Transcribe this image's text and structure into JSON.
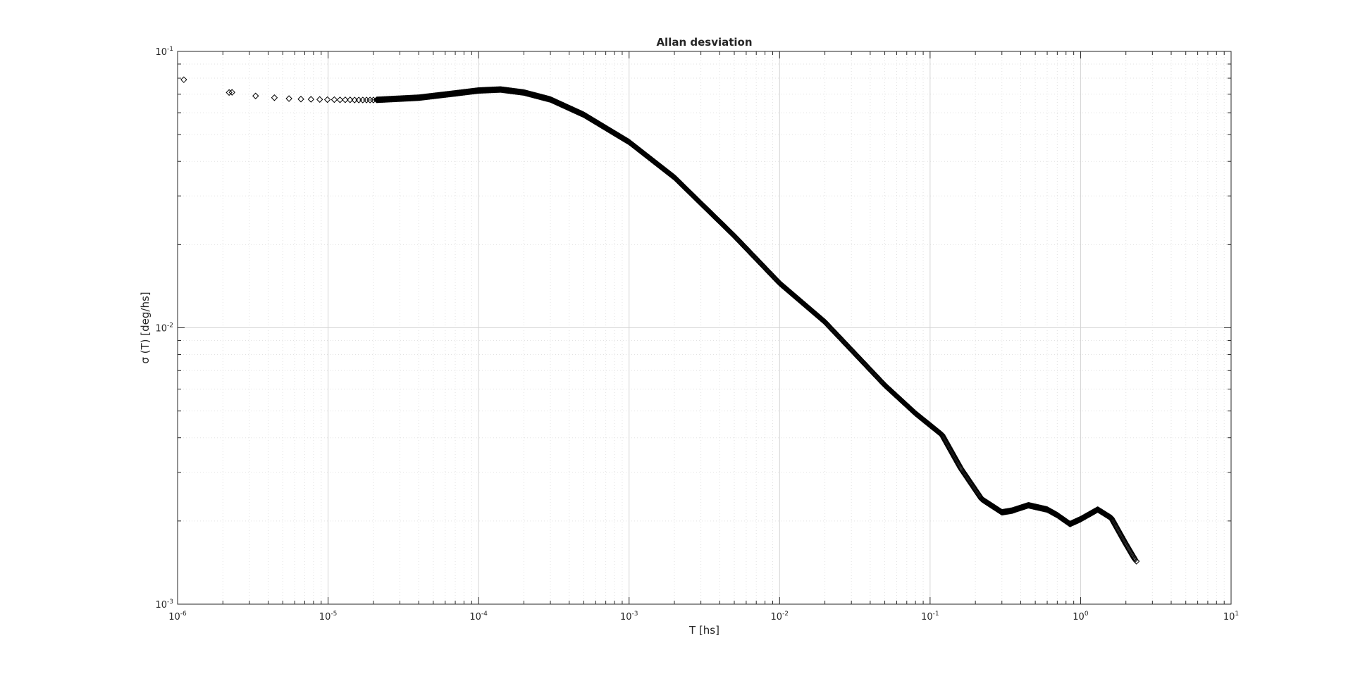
{
  "chart_data": {
    "type": "scatter",
    "title": "Allan desviation",
    "xlabel": "T [hs]",
    "ylabel": "σ (T) [deg/hs]",
    "xscale": "log",
    "yscale": "log",
    "xlim": [
      1e-06,
      10
    ],
    "ylim": [
      0.001,
      0.1
    ],
    "grid": true,
    "minor_grid": true,
    "legend": "none",
    "marker": "diamond",
    "marker_color": "#000000",
    "x_ticks": [
      {
        "base": "10",
        "exp": "-6"
      },
      {
        "base": "10",
        "exp": "-5"
      },
      {
        "base": "10",
        "exp": "-4"
      },
      {
        "base": "10",
        "exp": "-3"
      },
      {
        "base": "10",
        "exp": "-2"
      },
      {
        "base": "10",
        "exp": "-1"
      },
      {
        "base": "10",
        "exp": "0"
      },
      {
        "base": "10",
        "exp": "1"
      }
    ],
    "y_ticks": [
      {
        "base": "10",
        "exp": "-3"
      },
      {
        "base": "10",
        "exp": "-2"
      },
      {
        "base": "10",
        "exp": "-1"
      }
    ],
    "curve": {
      "x": [
        1.1e-06,
        2.2e-06,
        3.3e-06,
        4.4e-06,
        5.5e-06,
        6.6e-06,
        8e-06,
        1e-05,
        2e-05,
        4e-05,
        7e-05,
        0.0001,
        0.00014,
        0.0002,
        0.0003,
        0.0005,
        0.001,
        0.002,
        0.005,
        0.01,
        0.02,
        0.05,
        0.08,
        0.12,
        0.16,
        0.22,
        0.3,
        0.35,
        0.45,
        0.6,
        0.7,
        0.85,
        1.0,
        1.3,
        1.6,
        2.0,
        2.3
      ],
      "y": [
        0.079,
        0.071,
        0.069,
        0.068,
        0.0675,
        0.0672,
        0.067,
        0.0668,
        0.0667,
        0.068,
        0.0705,
        0.0722,
        0.0728,
        0.071,
        0.067,
        0.059,
        0.047,
        0.035,
        0.0215,
        0.0145,
        0.0105,
        0.0062,
        0.0049,
        0.0041,
        0.0031,
        0.0024,
        0.00215,
        0.00218,
        0.00228,
        0.0022,
        0.0021,
        0.00195,
        0.00203,
        0.0022,
        0.00205,
        0.00165,
        0.00145
      ]
    },
    "discrete_points": [
      {
        "x": 1.1e-06,
        "y": 0.079
      },
      {
        "x": 2.2e-06,
        "y": 0.071
      },
      {
        "x": 3.3e-06,
        "y": 0.069
      },
      {
        "x": 4.4e-06,
        "y": 0.068
      },
      {
        "x": 5.5e-06,
        "y": 0.0675
      },
      {
        "x": 6.6e-06,
        "y": 0.0672
      },
      {
        "x": 7.7e-06,
        "y": 0.0671
      },
      {
        "x": 8.8e-06,
        "y": 0.067
      },
      {
        "x": 9.9e-06,
        "y": 0.0669
      },
      {
        "x": 2.3e-06,
        "y": 0.0711
      },
      {
        "x": 1.1e-05,
        "y": 0.0669
      },
      {
        "x": 1.2e-05,
        "y": 0.0668
      },
      {
        "x": 1.3e-05,
        "y": 0.0668
      },
      {
        "x": 1.4e-05,
        "y": 0.0668
      },
      {
        "x": 1.5e-05,
        "y": 0.0667
      },
      {
        "x": 1.6e-05,
        "y": 0.0667
      },
      {
        "x": 1.7e-05,
        "y": 0.0667
      },
      {
        "x": 1.8e-05,
        "y": 0.0667
      },
      {
        "x": 1.9e-05,
        "y": 0.0667
      },
      {
        "x": 2e-05,
        "y": 0.0667
      }
    ],
    "end_point": {
      "x": 2.35,
      "y": 0.00143
    }
  }
}
